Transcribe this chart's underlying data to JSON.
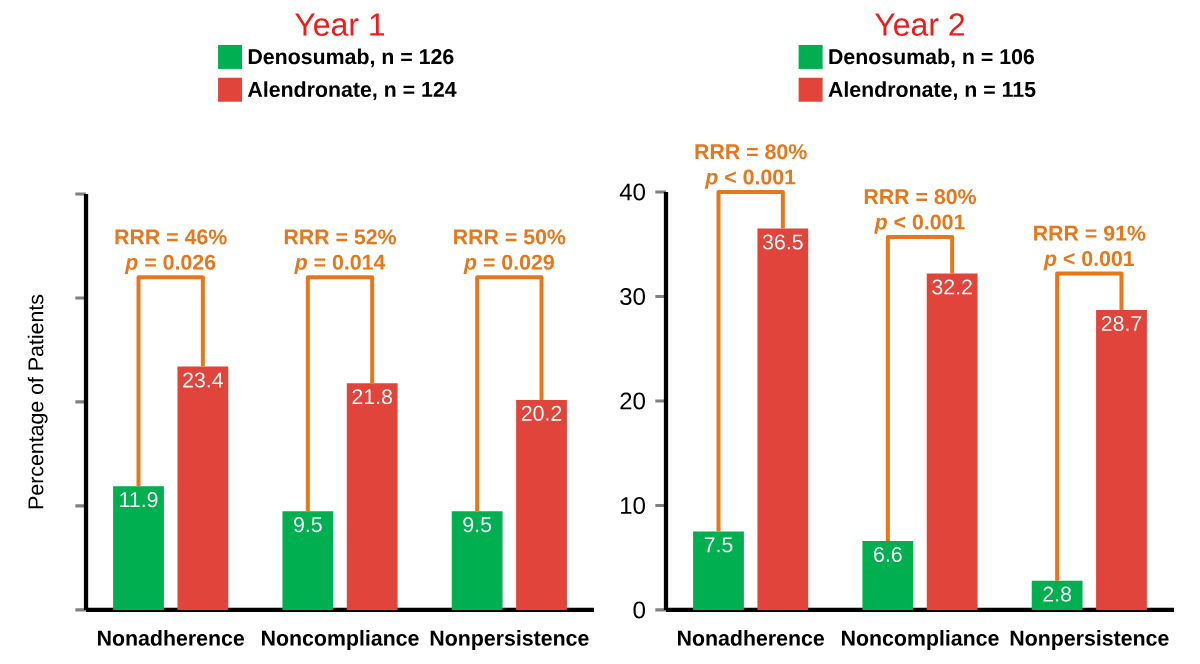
{
  "chart_data": [
    {
      "type": "bar",
      "title": "Year 1",
      "ylabel": "Percentage of Patients",
      "categories": [
        "Nonadherence",
        "Noncompliance",
        "Nonpersistence"
      ],
      "series": [
        {
          "name": "Denosumab, n = 126",
          "color": "#00b050",
          "values": [
            11.9,
            9.5,
            9.5
          ]
        },
        {
          "name": "Alendronate, n = 124",
          "color": "#e0443a",
          "values": [
            23.4,
            21.8,
            20.2
          ]
        }
      ],
      "ylim": [
        0,
        40
      ],
      "yticks": [
        {
          "value": 0,
          "label": null
        },
        {
          "value": 10,
          "label": null
        },
        {
          "value": 20,
          "label": null
        },
        {
          "value": 30,
          "label": null
        },
        {
          "value": 40,
          "label": null
        }
      ],
      "tick_labels": "x",
      "data_labels": true,
      "legend": "top",
      "annotations": [
        "RRR = 46%",
        "*p* = 0.026",
        "RRR = 52%",
        "*p* = 0.014",
        "RRR = 50%",
        "*p* = 0.029"
      ]
    },
    {
      "type": "bar",
      "title": "Year 2",
      "categories": [
        "Nonadherence",
        "Noncompliance",
        "Nonpersistence"
      ],
      "series": [
        {
          "name": "Denosumab, n = 106",
          "color": "#00b050",
          "values": [
            7.5,
            6.6,
            2.8
          ]
        },
        {
          "name": "Alendronate, n = 115",
          "color": "#e0443a",
          "values": [
            36.5,
            32.2,
            28.7
          ]
        }
      ],
      "ylim": [
        0,
        40
      ],
      "yticks": [
        0,
        10,
        20,
        30,
        40
      ],
      "data_labels": true,
      "legend": "top",
      "annotations": [
        "RRR = 80%",
        "*p* < 0.001",
        "RRR = 80%",
        "*p* < 0.001",
        "RRR = 91%",
        "*p* < 0.001"
      ]
    }
  ]
}
